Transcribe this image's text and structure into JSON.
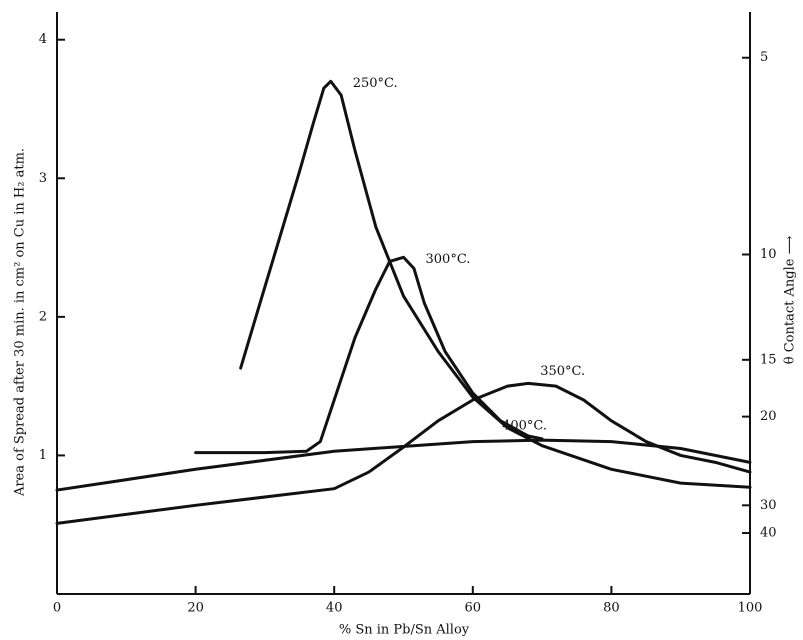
{
  "chart_data": {
    "type": "line",
    "xlabel": "% Sn in Pb/Sn Alloy",
    "ylabel": "Area of Spread after 30 min. in cm² on Cu in H₂ atm.",
    "y2label": "θ Contact Angle ⟶",
    "xlim": [
      0,
      100
    ],
    "xticks": [
      0,
      20,
      40,
      60,
      80,
      100
    ],
    "ylim": [
      0,
      4.2
    ],
    "yticks": [
      1,
      2,
      3,
      4
    ],
    "y2ticks": [
      5,
      10,
      15,
      20,
      30,
      40
    ],
    "y2tick_at": [
      3.87,
      2.45,
      1.69,
      1.28,
      0.64,
      0.44
    ],
    "color": "#111111",
    "series": [
      {
        "name": "250°C.",
        "x": [
          26.5,
          29,
          32,
          35,
          37,
          38.5,
          39.5,
          41,
          43,
          46,
          50,
          55,
          60,
          65,
          70,
          80,
          90,
          100
        ],
        "values": [
          1.63,
          2.05,
          2.55,
          3.05,
          3.4,
          3.65,
          3.7,
          3.6,
          3.2,
          2.65,
          2.15,
          1.75,
          1.42,
          1.2,
          1.07,
          0.9,
          0.8,
          0.77
        ]
      },
      {
        "name": "300°C.",
        "x": [
          20,
          30,
          36,
          38,
          40,
          43,
          46,
          48,
          50,
          51.5,
          53,
          56,
          60,
          64,
          68,
          70
        ],
        "values": [
          1.02,
          1.02,
          1.03,
          1.1,
          1.4,
          1.85,
          2.2,
          2.4,
          2.43,
          2.35,
          2.1,
          1.75,
          1.45,
          1.25,
          1.14,
          1.12
        ]
      },
      {
        "name": "350°C.",
        "x": [
          0,
          20,
          40,
          45,
          50,
          55,
          60,
          65,
          68,
          72,
          76,
          80,
          85,
          90,
          95,
          100
        ],
        "values": [
          0.51,
          0.64,
          0.76,
          0.88,
          1.06,
          1.25,
          1.4,
          1.5,
          1.52,
          1.5,
          1.4,
          1.25,
          1.1,
          1.0,
          0.95,
          0.88
        ]
      },
      {
        "name": "400°C.",
        "x": [
          0,
          20,
          40,
          60,
          70,
          80,
          90,
          100
        ],
        "values": [
          0.75,
          0.9,
          1.03,
          1.1,
          1.11,
          1.1,
          1.05,
          0.95
        ]
      }
    ]
  }
}
